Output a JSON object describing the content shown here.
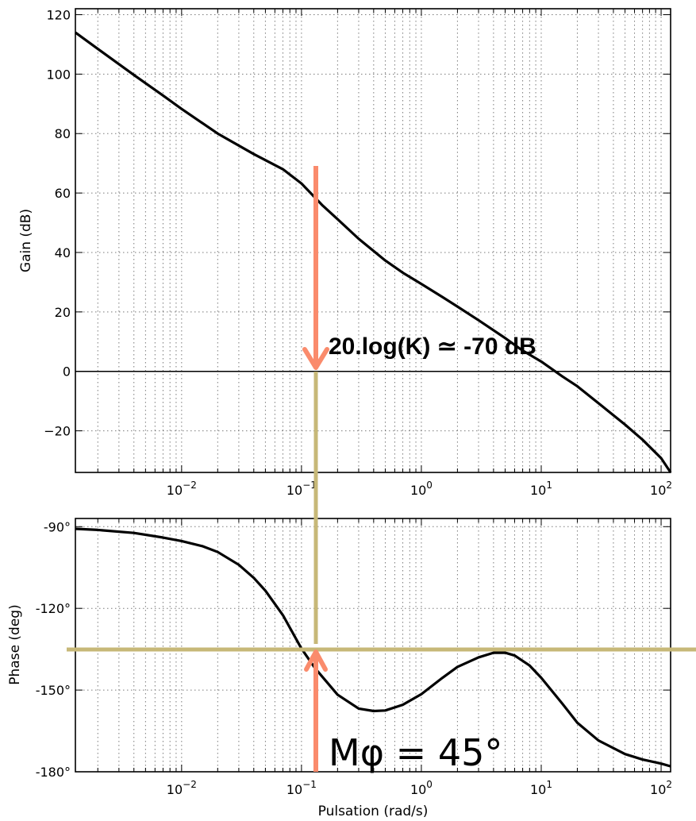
{
  "chart_data": [
    {
      "type": "line",
      "name": "gain",
      "ylabel": "Gain (dB)",
      "xlabel": "",
      "xscale": "log",
      "xlim": [
        0.0013,
        120
      ],
      "ylim": [
        -34,
        122
      ],
      "grid": true,
      "yticks": [
        {
          "v": 120,
          "label": "120"
        },
        {
          "v": 100,
          "label": "100"
        },
        {
          "v": 80,
          "label": "80"
        },
        {
          "v": 60,
          "label": "60"
        },
        {
          "v": 40,
          "label": "40"
        },
        {
          "v": 20,
          "label": "20"
        },
        {
          "v": 0,
          "label": "0"
        },
        {
          "v": -20,
          "label": "−20"
        }
      ],
      "xticks": [
        {
          "v": 0.01,
          "base": "10",
          "exp": "−2"
        },
        {
          "v": 0.1,
          "base": "10",
          "exp": "−1"
        },
        {
          "v": 1,
          "base": "10",
          "exp": "0"
        },
        {
          "v": 10,
          "base": "10",
          "exp": "1"
        },
        {
          "v": 100,
          "base": "10",
          "exp": "2"
        }
      ],
      "reference_line_y": 0,
      "series": [
        {
          "x": [
            0.0013,
            0.002,
            0.004,
            0.007,
            0.01,
            0.02,
            0.04,
            0.07,
            0.1,
            0.15,
            0.2,
            0.3,
            0.5,
            0.7,
            1,
            1.5,
            2,
            3,
            5,
            7,
            10,
            15,
            20,
            30,
            50,
            70,
            100,
            120
          ],
          "y": [
            114,
            108.5,
            99.7,
            92.8,
            88.3,
            80,
            73.1,
            68,
            63.2,
            55.8,
            51.2,
            44.6,
            37.3,
            33.2,
            29.4,
            25,
            21.8,
            17.2,
            11.2,
            7,
            3.3,
            -1.7,
            -5,
            -10.7,
            -17.9,
            -23,
            -29.2,
            -34
          ]
        }
      ],
      "annotation": "20.log(K) ≃ -70 dB"
    },
    {
      "type": "line",
      "name": "phase",
      "ylabel": "Phase (deg)",
      "xlabel": "Pulsation (rad/s)",
      "xscale": "log",
      "xlim": [
        0.0013,
        120
      ],
      "ylim": [
        -180,
        -87
      ],
      "grid": true,
      "yticks": [
        {
          "v": -90,
          "label": "-90°"
        },
        {
          "v": -120,
          "label": "-120°"
        },
        {
          "v": -150,
          "label": "-150°"
        },
        {
          "v": -180,
          "label": "-180°"
        }
      ],
      "xticks": [
        {
          "v": 0.01,
          "base": "10",
          "exp": "−2"
        },
        {
          "v": 0.1,
          "base": "10",
          "exp": "−1"
        },
        {
          "v": 1,
          "base": "10",
          "exp": "0"
        },
        {
          "v": 10,
          "base": "10",
          "exp": "1"
        },
        {
          "v": 100,
          "base": "10",
          "exp": "2"
        }
      ],
      "reference_line_y": -135,
      "series": [
        {
          "x": [
            0.0013,
            0.002,
            0.004,
            0.007,
            0.01,
            0.015,
            0.02,
            0.03,
            0.04,
            0.05,
            0.07,
            0.1,
            0.13,
            0.2,
            0.3,
            0.4,
            0.5,
            0.7,
            1,
            1.5,
            2,
            3,
            4,
            5,
            6,
            8,
            10,
            15,
            20,
            30,
            50,
            70,
            100,
            120
          ],
          "y": [
            -90.8,
            -91.2,
            -92.3,
            -94,
            -95.3,
            -97.2,
            -99.3,
            -104,
            -108.8,
            -113.5,
            -122.5,
            -134.8,
            -142,
            -151.7,
            -156.8,
            -157.7,
            -157.5,
            -155.4,
            -151.5,
            -145.5,
            -141.5,
            -138,
            -136.3,
            -136.3,
            -137.3,
            -141,
            -145.5,
            -155,
            -162,
            -168.5,
            -173.5,
            -175.5,
            -177,
            -178
          ]
        }
      ],
      "annotation": "Mφ = 45°"
    }
  ],
  "colors": {
    "curve": "#000000",
    "arrow": "#fa8b6c",
    "guide": "#c7b878"
  }
}
